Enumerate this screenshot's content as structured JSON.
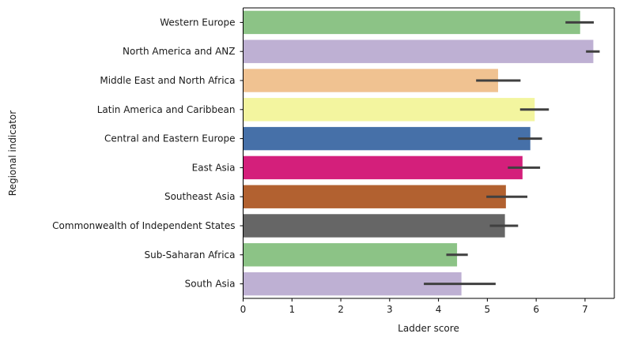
{
  "chart_data": {
    "type": "bar",
    "orientation": "horizontal",
    "title": "",
    "xlabel": "Ladder score",
    "ylabel": "Regional indicator",
    "xlim": [
      0,
      7.6
    ],
    "xticks": [
      0,
      1,
      2,
      3,
      4,
      5,
      6,
      7
    ],
    "grid": false,
    "legend": "none",
    "categories": [
      "Western Europe",
      "North America and ANZ",
      "Middle East and North Africa",
      "Latin America and Caribbean",
      "Central and Eastern Europe",
      "East Asia",
      "Southeast Asia",
      "Commonwealth of Independent States",
      "Sub-Saharan Africa",
      "South Asia"
    ],
    "values": [
      6.9,
      7.17,
      5.22,
      5.97,
      5.88,
      5.72,
      5.38,
      5.36,
      4.38,
      4.47
    ],
    "error_low": [
      6.6,
      7.02,
      4.77,
      5.67,
      5.63,
      5.42,
      4.98,
      5.05,
      4.16,
      3.7
    ],
    "error_high": [
      7.18,
      7.3,
      5.68,
      6.26,
      6.12,
      6.08,
      5.82,
      5.63,
      4.6,
      5.17
    ],
    "colors": [
      "#8cc386",
      "#beb0d3",
      "#f0c291",
      "#f3f59f",
      "#4670a8",
      "#d41f7b",
      "#b26130",
      "#666666",
      "#8cc386",
      "#beb0d3"
    ],
    "error_color": "#404040"
  }
}
